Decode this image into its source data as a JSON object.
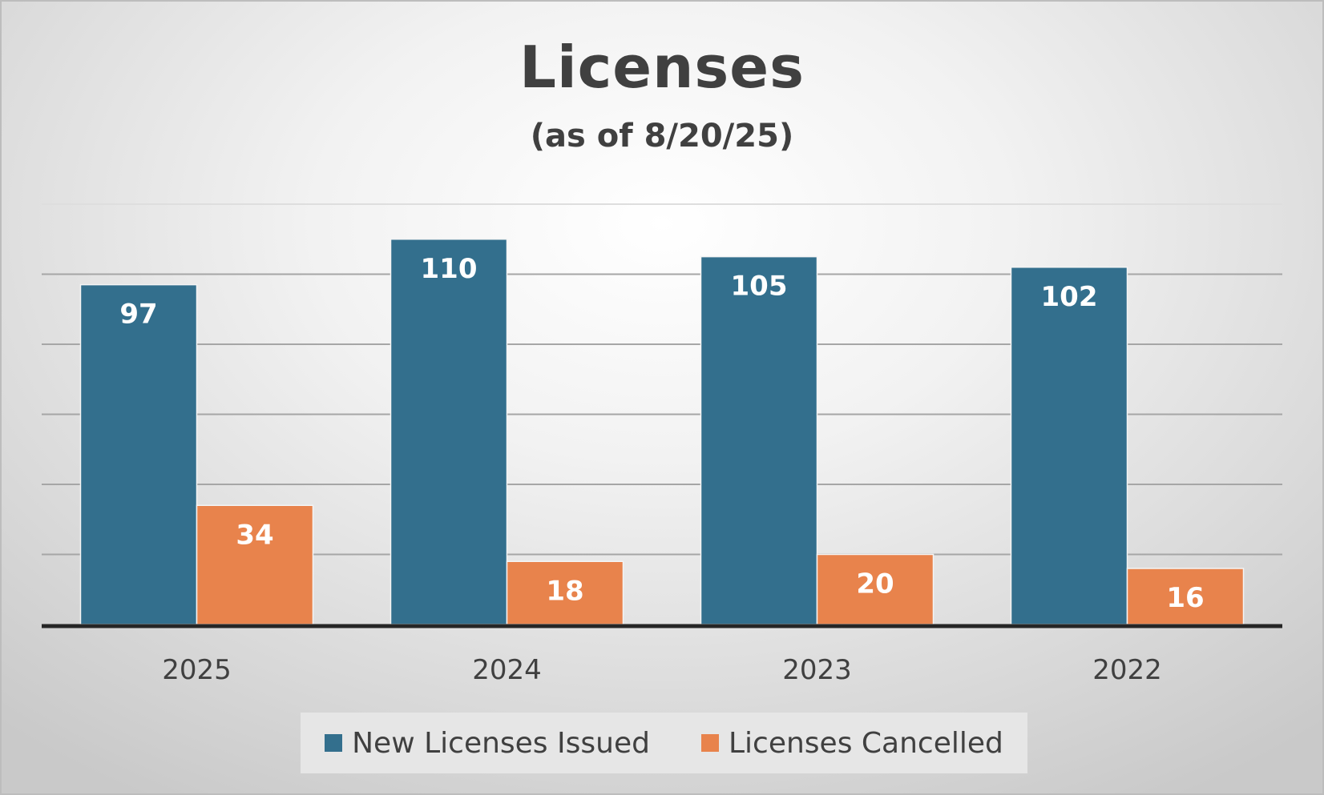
{
  "chart_data": {
    "type": "bar",
    "title": "Licenses",
    "subtitle": "(as of 8/20/25)",
    "categories": [
      "2025",
      "2024",
      "2023",
      "2022"
    ],
    "series": [
      {
        "name": "New Licenses Issued",
        "values": [
          97,
          110,
          105,
          102
        ],
        "color": "#336f8d"
      },
      {
        "name": "Licenses Cancelled",
        "values": [
          34,
          18,
          20,
          16
        ],
        "color": "#e8834c"
      }
    ],
    "ylim": [
      0,
      120
    ],
    "gridlines": true,
    "legend_position": "bottom",
    "data_labels": true
  }
}
